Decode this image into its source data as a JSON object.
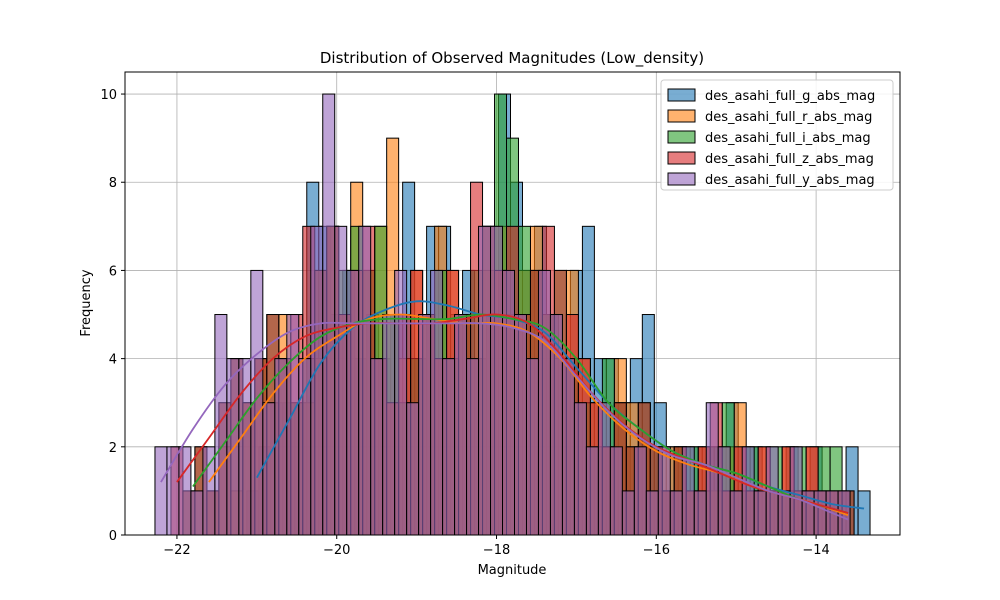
{
  "chart_data": {
    "type": "histogram",
    "title": "Distribution of Observed Magnitudes (Low_density)",
    "xlabel": "Magnitude",
    "ylabel": "Frequency",
    "xlim": [
      -22.65,
      -12.95
    ],
    "ylim": [
      0,
      10.5
    ],
    "xticks": [
      -22,
      -20,
      -18,
      -16,
      -14
    ],
    "xtick_labels": [
      "−22",
      "−20",
      "−18",
      "−16",
      "−14"
    ],
    "yticks": [
      0,
      2,
      4,
      6,
      8,
      10
    ],
    "ytick_labels": [
      "0",
      "2",
      "4",
      "6",
      "8",
      "10"
    ],
    "grid": true,
    "legend_position": "top-right",
    "kde": true,
    "series": [
      {
        "name": "des_asahi_full_g_abs_mag",
        "color": "#1f77b4",
        "bin_width": 0.15,
        "x": [
          -21.05,
          -20.9,
          -20.75,
          -20.6,
          -20.45,
          -20.3,
          -20.15,
          -20.0,
          -19.85,
          -19.7,
          -19.55,
          -19.4,
          -19.25,
          -19.1,
          -18.95,
          -18.8,
          -18.65,
          -18.5,
          -18.35,
          -18.2,
          -18.05,
          -17.9,
          -17.75,
          -17.6,
          -17.45,
          -17.3,
          -17.15,
          -17.0,
          -16.85,
          -16.7,
          -16.55,
          -16.4,
          -16.25,
          -16.1,
          -15.95,
          -15.8,
          -15.65,
          -15.5,
          -15.35,
          -15.2,
          -15.05,
          -14.9,
          -14.75,
          -14.6,
          -14.45,
          -14.3,
          -14.15,
          -14.0,
          -13.85,
          -13.7,
          -13.55,
          -13.4
        ],
        "y": [
          1,
          2,
          3,
          3,
          3,
          8,
          7,
          5,
          6,
          4,
          5,
          4,
          5,
          8,
          4,
          7,
          7,
          5,
          6,
          4,
          5,
          10,
          8,
          6,
          7,
          5,
          4,
          6,
          7,
          4,
          4,
          3,
          4,
          5,
          3,
          2,
          2,
          2,
          2,
          2,
          3,
          2,
          2,
          1,
          1,
          2,
          1,
          2,
          1,
          1,
          2,
          1
        ],
        "kde_x": [
          -21.0,
          -20.6,
          -20.2,
          -19.8,
          -19.4,
          -19.0,
          -18.6,
          -18.2,
          -17.8,
          -17.4,
          -17.0,
          -16.6,
          -16.2,
          -15.8,
          -15.4,
          -15.0,
          -14.6,
          -14.2,
          -13.8,
          -13.4
        ],
        "kde_y": [
          1.3,
          2.6,
          3.9,
          4.7,
          5.1,
          5.3,
          5.2,
          5.0,
          4.9,
          4.6,
          3.8,
          3.0,
          2.4,
          1.9,
          1.6,
          1.4,
          1.1,
          0.9,
          0.7,
          0.6
        ]
      },
      {
        "name": "des_asahi_full_r_abs_mag",
        "color": "#ff7f0e",
        "bin_width": 0.15,
        "x": [
          -21.55,
          -21.4,
          -21.25,
          -21.1,
          -20.95,
          -20.8,
          -20.65,
          -20.5,
          -20.35,
          -20.2,
          -20.05,
          -19.9,
          -19.75,
          -19.6,
          -19.45,
          -19.3,
          -19.15,
          -19.0,
          -18.85,
          -18.7,
          -18.55,
          -18.4,
          -18.25,
          -18.1,
          -17.95,
          -17.8,
          -17.65,
          -17.5,
          -17.35,
          -17.2,
          -17.05,
          -16.9,
          -16.75,
          -16.6,
          -16.45,
          -16.3,
          -16.15,
          -16.0,
          -15.85,
          -15.7,
          -15.55,
          -15.4,
          -15.25,
          -15.1,
          -14.95,
          -14.8,
          -14.65,
          -14.5,
          -14.35,
          -14.2,
          -14.05,
          -13.9,
          -13.75
        ],
        "y": [
          1,
          2,
          1,
          3,
          4,
          3,
          5,
          3,
          3,
          4,
          7,
          5,
          8,
          6,
          7,
          9,
          4,
          6,
          5,
          7,
          6,
          5,
          4,
          6,
          7,
          5,
          6,
          7,
          5,
          4,
          6,
          4,
          3,
          2,
          4,
          3,
          2,
          1,
          2,
          2,
          1,
          2,
          1,
          2,
          3,
          1,
          2,
          1,
          2,
          1,
          2,
          1,
          1
        ],
        "kde_x": [
          -21.6,
          -21.2,
          -20.8,
          -20.4,
          -20.0,
          -19.6,
          -19.2,
          -18.8,
          -18.4,
          -18.0,
          -17.6,
          -17.2,
          -16.8,
          -16.4,
          -16.0,
          -15.6,
          -15.2,
          -14.8,
          -14.4,
          -14.0,
          -13.6
        ],
        "kde_y": [
          1.2,
          2.2,
          3.2,
          4.0,
          4.5,
          4.9,
          5.0,
          4.9,
          4.8,
          4.8,
          4.6,
          4.0,
          3.1,
          2.4,
          1.9,
          1.6,
          1.4,
          1.1,
          0.9,
          0.7,
          0.45
        ]
      },
      {
        "name": "des_asahi_full_i_abs_mag",
        "color": "#2ca02c",
        "bin_width": 0.15,
        "x": [
          -21.85,
          -21.7,
          -21.55,
          -21.4,
          -21.25,
          -21.1,
          -20.95,
          -20.8,
          -20.65,
          -20.5,
          -20.35,
          -20.2,
          -20.05,
          -19.9,
          -19.75,
          -19.6,
          -19.45,
          -19.3,
          -19.15,
          -19.0,
          -18.85,
          -18.7,
          -18.55,
          -18.4,
          -18.25,
          -18.1,
          -17.95,
          -17.8,
          -17.65,
          -17.5,
          -17.35,
          -17.2,
          -17.05,
          -16.9,
          -16.75,
          -16.6,
          -16.45,
          -16.3,
          -16.15,
          -16.0,
          -15.85,
          -15.7,
          -15.55,
          -15.4,
          -15.25,
          -15.1,
          -14.95,
          -14.8,
          -14.65,
          -14.5,
          -14.35,
          -14.2,
          -14.05,
          -13.9,
          -13.75,
          -13.6
        ],
        "y": [
          1,
          2,
          1,
          3,
          4,
          3,
          4,
          5,
          4,
          3,
          4,
          6,
          7,
          6,
          7,
          6,
          7,
          5,
          3,
          4,
          5,
          6,
          4,
          5,
          6,
          7,
          10,
          9,
          7,
          6,
          5,
          6,
          4,
          3,
          2,
          4,
          3,
          2,
          3,
          2,
          1,
          2,
          2,
          1,
          2,
          3,
          1,
          2,
          1,
          2,
          1,
          2,
          1,
          2,
          2,
          1
        ],
        "kde_x": [
          -21.8,
          -21.4,
          -21.0,
          -20.6,
          -20.2,
          -19.8,
          -19.4,
          -19.0,
          -18.6,
          -18.2,
          -17.8,
          -17.4,
          -17.0,
          -16.6,
          -16.2,
          -15.8,
          -15.4,
          -15.0,
          -14.6,
          -14.2,
          -13.8,
          -13.6
        ],
        "kde_y": [
          1.1,
          2.1,
          3.1,
          3.9,
          4.5,
          4.8,
          4.9,
          4.9,
          4.9,
          5.0,
          4.9,
          4.7,
          4.0,
          3.0,
          2.4,
          1.9,
          1.6,
          1.4,
          1.1,
          0.8,
          0.6,
          0.5
        ]
      },
      {
        "name": "des_asahi_full_z_abs_mag",
        "color": "#d62728",
        "bin_width": 0.15,
        "x": [
          -22.0,
          -21.85,
          -21.7,
          -21.55,
          -21.4,
          -21.25,
          -21.1,
          -20.95,
          -20.8,
          -20.65,
          -20.5,
          -20.35,
          -20.2,
          -20.05,
          -19.9,
          -19.75,
          -19.6,
          -19.45,
          -19.3,
          -19.15,
          -19.0,
          -18.85,
          -18.7,
          -18.55,
          -18.4,
          -18.25,
          -18.1,
          -17.95,
          -17.8,
          -17.65,
          -17.5,
          -17.35,
          -17.2,
          -17.05,
          -16.9,
          -16.75,
          -16.6,
          -16.45,
          -16.3,
          -16.15,
          -16.0,
          -15.85,
          -15.7,
          -15.55,
          -15.4,
          -15.25,
          -15.1,
          -14.95,
          -14.8,
          -14.65,
          -14.5,
          -14.35,
          -14.2,
          -14.05,
          -13.9,
          -13.75,
          -13.6
        ],
        "y": [
          2,
          1,
          2,
          1,
          3,
          4,
          3,
          4,
          5,
          4,
          5,
          7,
          6,
          7,
          5,
          6,
          7,
          4,
          3,
          5,
          6,
          5,
          4,
          6,
          5,
          8,
          7,
          6,
          7,
          5,
          6,
          7,
          6,
          5,
          4,
          3,
          2,
          3,
          2,
          3,
          2,
          1,
          2,
          1,
          2,
          3,
          1,
          2,
          1,
          2,
          1,
          2,
          1,
          2,
          1,
          1,
          1
        ],
        "kde_x": [
          -22.0,
          -21.6,
          -21.2,
          -20.8,
          -20.4,
          -20.0,
          -19.6,
          -19.2,
          -18.8,
          -18.4,
          -18.0,
          -17.6,
          -17.2,
          -16.8,
          -16.4,
          -16.0,
          -15.6,
          -15.2,
          -14.8,
          -14.4,
          -14.0,
          -13.6
        ],
        "kde_y": [
          1.2,
          2.2,
          3.2,
          4.0,
          4.5,
          4.7,
          4.8,
          4.8,
          4.8,
          4.9,
          5.0,
          4.8,
          4.1,
          3.2,
          2.5,
          2.0,
          1.7,
          1.4,
          1.1,
          0.9,
          0.7,
          0.5
        ]
      },
      {
        "name": "des_asahi_full_y_abs_mag",
        "color": "#9467bd",
        "bin_width": 0.15,
        "x": [
          -22.2,
          -22.05,
          -21.9,
          -21.75,
          -21.6,
          -21.45,
          -21.3,
          -21.15,
          -21.0,
          -20.85,
          -20.7,
          -20.55,
          -20.4,
          -20.25,
          -20.1,
          -19.95,
          -19.8,
          -19.65,
          -19.5,
          -19.35,
          -19.2,
          -19.05,
          -18.9,
          -18.75,
          -18.6,
          -18.45,
          -18.3,
          -18.15,
          -18.0,
          -17.85,
          -17.7,
          -17.55,
          -17.4,
          -17.25,
          -17.1,
          -16.95,
          -16.8,
          -16.65,
          -16.5,
          -16.35,
          -16.2,
          -16.05,
          -15.9,
          -15.75,
          -15.6,
          -15.45,
          -15.3,
          -15.15,
          -15.0,
          -14.85,
          -14.7,
          -14.55,
          -14.4,
          -14.25,
          -14.1,
          -13.95,
          -13.8,
          -13.65
        ],
        "y": [
          2,
          2,
          2,
          1,
          2,
          5,
          4,
          4,
          6,
          3,
          4,
          5,
          4,
          7,
          10,
          7,
          6,
          7,
          4,
          5,
          6,
          3,
          5,
          6,
          4,
          5,
          4,
          7,
          7,
          6,
          5,
          4,
          6,
          5,
          4,
          3,
          2,
          3,
          2,
          1,
          2,
          1,
          2,
          1,
          2,
          1,
          3,
          2,
          1,
          2,
          1,
          2,
          1,
          2,
          1,
          1,
          1,
          1
        ],
        "kde_x": [
          -22.2,
          -21.8,
          -21.4,
          -21.0,
          -20.6,
          -20.2,
          -19.8,
          -19.4,
          -19.0,
          -18.6,
          -18.2,
          -17.8,
          -17.4,
          -17.0,
          -16.6,
          -16.2,
          -15.8,
          -15.4,
          -15.0,
          -14.6,
          -14.2,
          -13.8,
          -13.6
        ],
        "kde_y": [
          1.2,
          2.4,
          3.4,
          4.1,
          4.6,
          4.8,
          4.8,
          4.8,
          4.8,
          4.8,
          4.8,
          4.7,
          4.4,
          3.6,
          2.8,
          2.2,
          1.8,
          1.6,
          1.3,
          1.0,
          0.8,
          0.5,
          0.35
        ]
      }
    ]
  }
}
